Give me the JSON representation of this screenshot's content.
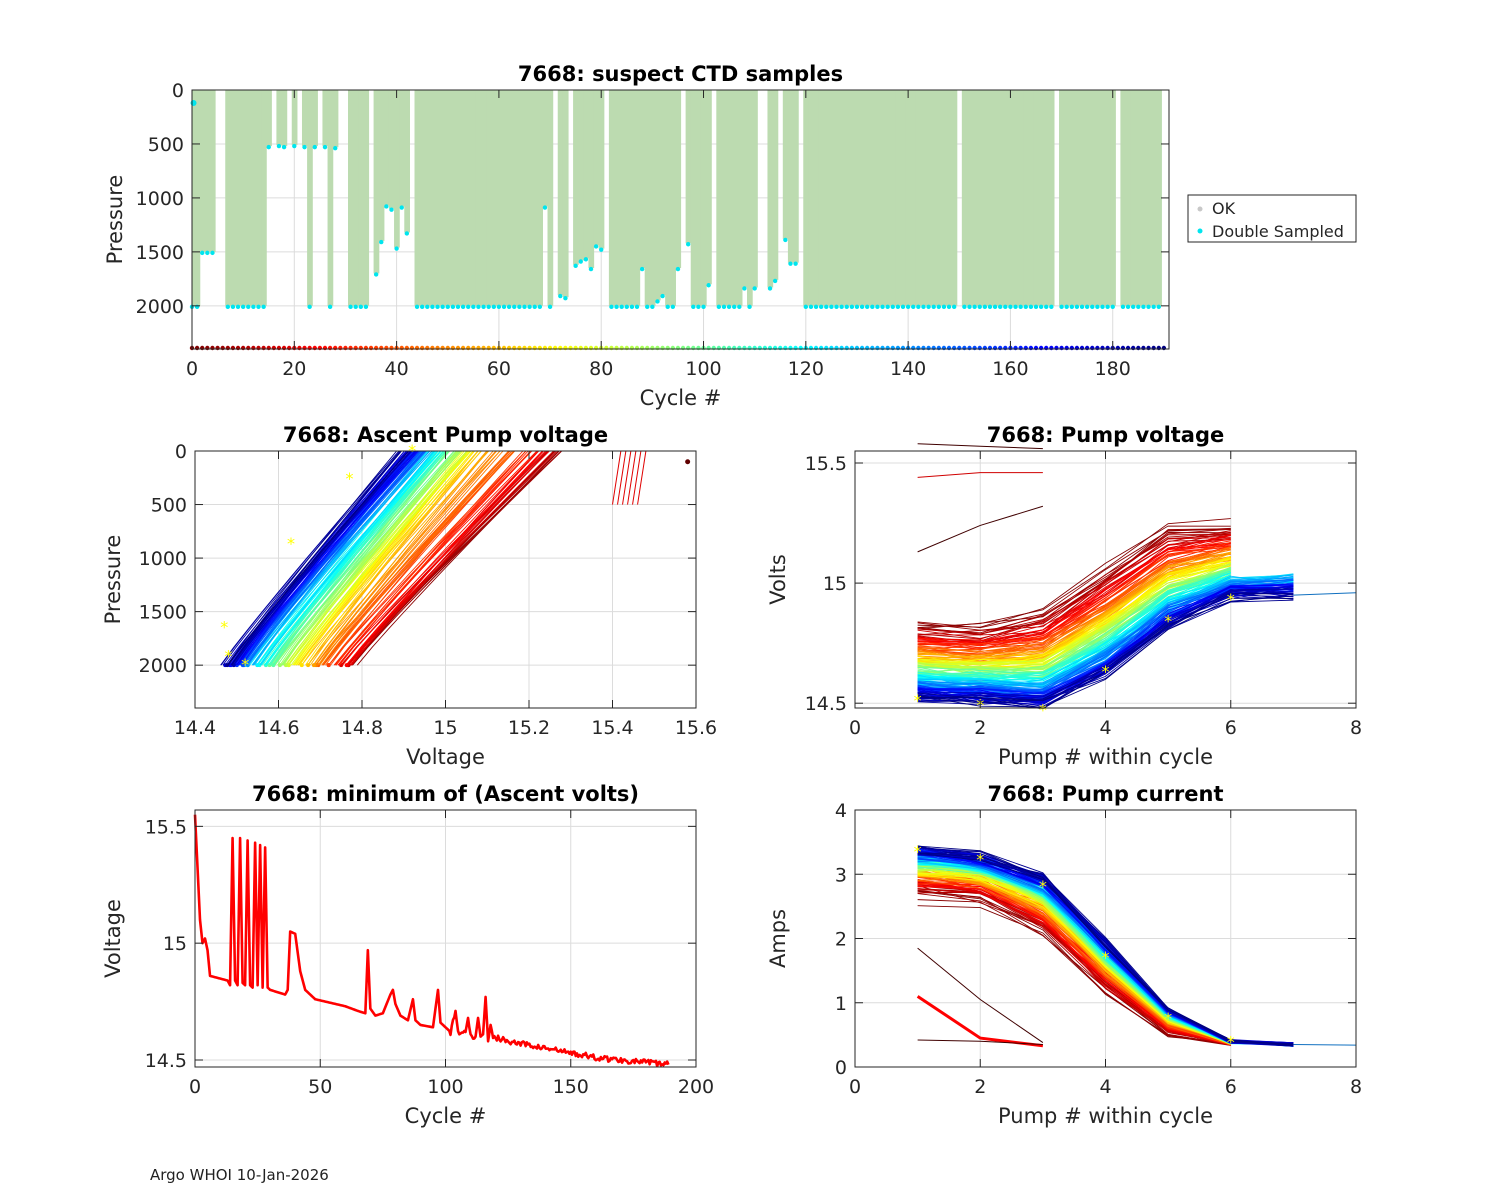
{
  "footer": "Argo WHOI 10-Jan-2026",
  "colors": {
    "ok": "#bcdbb0",
    "ok_marker": "#c8c8c8",
    "double": "#00e5ee",
    "line_red": "#ff0000",
    "star": "#ffff00",
    "grid": "#dcdcdc",
    "axis": "#262626"
  },
  "chart_data": [
    {
      "id": "suspect-ctd",
      "type": "scatter",
      "title": "7668: suspect CTD samples",
      "xlabel": "Cycle #",
      "ylabel": "Pressure",
      "xlim": [
        0,
        191
      ],
      "ylim": [
        2400,
        0
      ],
      "yreversed": true,
      "xticks": [
        0,
        20,
        40,
        60,
        80,
        100,
        120,
        140,
        160,
        180
      ],
      "yticks": [
        0,
        500,
        1000,
        1500,
        2000
      ],
      "legend": {
        "placement": "outside-right",
        "entries": [
          "OK",
          "Double Sampled"
        ]
      },
      "n_cycles": 190,
      "standard_depth": 2000,
      "shallow_profiles": [
        [
          2,
          1500
        ],
        [
          3,
          1500
        ],
        [
          4,
          1500
        ],
        [
          15,
          520
        ],
        [
          17,
          510
        ],
        [
          18,
          520
        ],
        [
          20,
          510
        ],
        [
          22,
          520
        ],
        [
          24,
          520
        ],
        [
          26,
          520
        ],
        [
          28,
          530
        ],
        [
          36,
          1700
        ],
        [
          37,
          1400
        ],
        [
          38,
          1070
        ],
        [
          39,
          1100
        ],
        [
          40,
          1460
        ],
        [
          41,
          1080
        ],
        [
          42,
          1320
        ],
        [
          69,
          1080
        ],
        [
          72,
          1900
        ],
        [
          73,
          1920
        ],
        [
          75,
          1620
        ],
        [
          76,
          1580
        ],
        [
          77,
          1560
        ],
        [
          78,
          1650
        ],
        [
          79,
          1440
        ],
        [
          80,
          1470
        ],
        [
          88,
          1650
        ],
        [
          91,
          1950
        ],
        [
          92,
          1900
        ],
        [
          95,
          1650
        ],
        [
          97,
          1420
        ],
        [
          101,
          1800
        ],
        [
          108,
          1830
        ],
        [
          110,
          1830
        ],
        [
          113,
          1830
        ],
        [
          114,
          1760
        ],
        [
          116,
          1380
        ],
        [
          117,
          1600
        ],
        [
          118,
          1600
        ]
      ],
      "gaps": [
        5,
        6,
        15.5,
        16,
        19,
        21,
        25,
        29,
        30,
        35,
        43,
        71,
        74,
        81,
        96,
        102,
        111,
        112,
        115,
        119,
        150,
        169,
        181
      ]
    },
    {
      "id": "ascent-pump-voltage",
      "type": "scatter",
      "title": "7668: Ascent Pump voltage",
      "xlabel": "Voltage",
      "ylabel": "Pressure",
      "xlim": [
        14.4,
        15.6
      ],
      "ylim": [
        2400,
        0
      ],
      "xticks": [
        14.4,
        14.6,
        14.8,
        15.0,
        15.2,
        15.4,
        15.6
      ],
      "xticklabels": [
        "14.4",
        "14.6",
        "14.8",
        "15",
        "15.2",
        "15.4",
        "15.6"
      ],
      "yticks": [
        0,
        500,
        1000,
        1500,
        2000
      ],
      "model": "Voltage rises roughly linearly as pressure decreases during ascent; early cycles (dark red) are highest, late cycles (dark blue) lowest.",
      "profile_endpoints": [
        {
          "cycle": 1,
          "bottom_v": 14.78,
          "surface_v": 15.28
        },
        {
          "cycle": 20,
          "bottom_v": 14.76,
          "surface_v": 15.24
        },
        {
          "cycle": 60,
          "bottom_v": 14.66,
          "surface_v": 15.08
        },
        {
          "cycle": 100,
          "bottom_v": 14.58,
          "surface_v": 15.0
        },
        {
          "cycle": 140,
          "bottom_v": 14.52,
          "surface_v": 14.94
        },
        {
          "cycle": 189,
          "bottom_v": 14.47,
          "surface_v": 14.9
        }
      ],
      "outliers": [
        {
          "cycle": 15,
          "voltage_range": [
            15.4,
            15.47
          ],
          "pressure_range": [
            0,
            500
          ]
        },
        {
          "cycle": 2,
          "voltage": 15.58,
          "pressure": 100
        }
      ]
    },
    {
      "id": "pump-voltage",
      "type": "line",
      "title": "7668: Pump voltage",
      "xlabel": "Pump # within cycle",
      "ylabel": "Volts",
      "xlim": [
        0,
        8
      ],
      "ylim": [
        14.48,
        15.55
      ],
      "xticks": [
        0,
        2,
        4,
        6,
        8
      ],
      "yticks": [
        14.5,
        15,
        15.5
      ],
      "yticklabels": [
        "14.5",
        "15",
        "15.5"
      ],
      "series_early": {
        "cycle": 1,
        "x": [
          1,
          2,
          3,
          4,
          5,
          6
        ],
        "values": [
          14.85,
          14.84,
          14.9,
          15.08,
          15.25,
          15.26
        ]
      },
      "series_late": {
        "cycle": 189,
        "x": [
          1,
          2,
          3,
          4,
          5,
          6,
          7
        ],
        "values": [
          14.52,
          14.51,
          14.49,
          14.62,
          14.82,
          14.94,
          14.95
        ]
      },
      "outliers": [
        {
          "x": [
            1,
            2,
            3
          ],
          "values": [
            15.58,
            15.57,
            15.56
          ]
        },
        {
          "x": [
            1,
            2,
            3
          ],
          "values": [
            15.44,
            15.46,
            15.46
          ]
        },
        {
          "x": [
            1,
            2,
            3
          ],
          "values": [
            15.13,
            15.24,
            15.32
          ]
        }
      ]
    },
    {
      "id": "min-ascent-volts",
      "type": "line",
      "title": "7668: minimum of (Ascent volts)",
      "xlabel": "Cycle #",
      "ylabel": "Voltage",
      "xlim": [
        0,
        200
      ],
      "ylim": [
        14.47,
        15.57
      ],
      "xticks": [
        0,
        50,
        100,
        150,
        200
      ],
      "yticks": [
        14.5,
        15,
        15.5
      ],
      "yticklabels": [
        "14.5",
        "15",
        "15.5"
      ],
      "keypoints": [
        [
          0,
          15.55
        ],
        [
          2,
          15.1
        ],
        [
          3,
          15.0
        ],
        [
          4,
          15.02
        ],
        [
          5,
          14.97
        ],
        [
          6,
          14.86
        ],
        [
          13,
          14.84
        ],
        [
          14,
          14.82
        ],
        [
          15,
          15.45
        ],
        [
          16,
          14.84
        ],
        [
          17,
          14.82
        ],
        [
          18,
          15.45
        ],
        [
          19,
          14.83
        ],
        [
          20,
          14.82
        ],
        [
          21,
          15.44
        ],
        [
          22,
          14.82
        ],
        [
          23,
          14.81
        ],
        [
          24,
          15.43
        ],
        [
          25,
          14.82
        ],
        [
          26,
          15.42
        ],
        [
          27,
          14.81
        ],
        [
          28,
          15.41
        ],
        [
          29,
          14.81
        ],
        [
          30,
          14.8
        ],
        [
          36,
          14.78
        ],
        [
          37,
          14.8
        ],
        [
          38,
          15.05
        ],
        [
          40,
          15.04
        ],
        [
          42,
          14.88
        ],
        [
          44,
          14.8
        ],
        [
          48,
          14.76
        ],
        [
          52,
          14.75
        ],
        [
          60,
          14.73
        ],
        [
          65,
          14.71
        ],
        [
          68,
          14.7
        ],
        [
          69,
          14.97
        ],
        [
          70,
          14.72
        ],
        [
          72,
          14.69
        ],
        [
          75,
          14.7
        ],
        [
          78,
          14.78
        ],
        [
          79,
          14.8
        ],
        [
          80,
          14.74
        ],
        [
          82,
          14.69
        ],
        [
          85,
          14.67
        ],
        [
          87,
          14.76
        ],
        [
          88,
          14.67
        ],
        [
          90,
          14.65
        ],
        [
          95,
          14.64
        ],
        [
          97,
          14.8
        ],
        [
          98,
          14.66
        ],
        [
          100,
          14.64
        ],
        [
          102,
          14.62
        ],
        [
          104,
          14.71
        ],
        [
          105,
          14.62
        ],
        [
          108,
          14.62
        ],
        [
          109,
          14.68
        ],
        [
          110,
          14.6
        ],
        [
          112,
          14.6
        ],
        [
          113,
          14.68
        ],
        [
          114,
          14.6
        ],
        [
          115,
          14.61
        ],
        [
          116,
          14.77
        ],
        [
          117,
          14.58
        ],
        [
          118,
          14.65
        ],
        [
          119,
          14.6
        ],
        [
          125,
          14.58
        ],
        [
          130,
          14.57
        ],
        [
          140,
          14.55
        ],
        [
          150,
          14.53
        ],
        [
          160,
          14.51
        ],
        [
          170,
          14.5
        ],
        [
          180,
          14.49
        ],
        [
          189,
          14.48
        ]
      ]
    },
    {
      "id": "pump-current",
      "type": "line",
      "title": "7668: Pump current",
      "xlabel": "Pump # within cycle",
      "ylabel": "Amps",
      "xlim": [
        0,
        8
      ],
      "ylim": [
        0,
        4
      ],
      "xticks": [
        0,
        2,
        4,
        6,
        8
      ],
      "yticks": [
        0,
        1,
        2,
        3,
        4
      ],
      "series_early": {
        "cycle": 1,
        "x": [
          1,
          2,
          3,
          4,
          5,
          6
        ],
        "values": [
          2.6,
          2.5,
          2.0,
          1.1,
          0.45,
          0.35
        ]
      },
      "series_late": {
        "cycle": 189,
        "x": [
          1,
          2,
          3,
          4,
          5,
          6,
          7
        ],
        "values": [
          3.4,
          3.3,
          2.95,
          1.95,
          0.9,
          0.4,
          0.35
        ]
      },
      "outliers": [
        {
          "x": [
            1,
            2,
            3
          ],
          "values": [
            1.1,
            0.45,
            0.33
          ]
        },
        {
          "x": [
            1,
            2,
            3
          ],
          "values": [
            1.85,
            1.05,
            0.38
          ]
        },
        {
          "x": [
            1,
            2,
            3
          ],
          "values": [
            0.42,
            0.4,
            0.35
          ]
        }
      ]
    }
  ]
}
